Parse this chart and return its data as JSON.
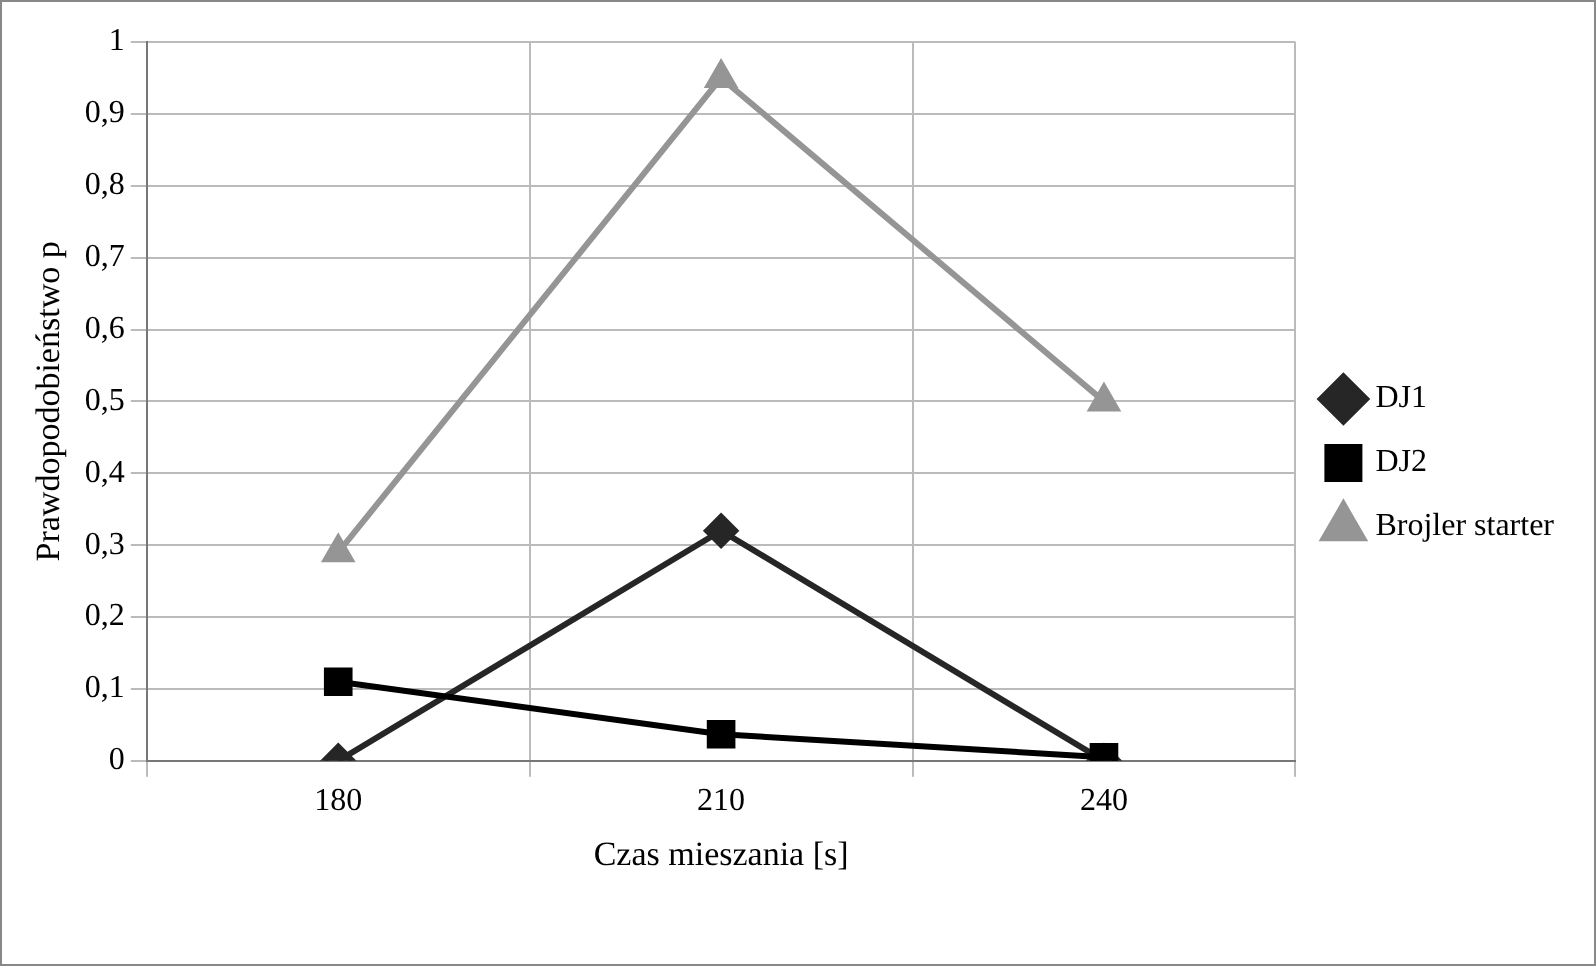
{
  "chart_data": {
    "type": "line",
    "xlabel": "Czas mieszania [s]",
    "ylabel": "Prawdopodobieństwo p",
    "categories": [
      "180",
      "210",
      "240"
    ],
    "series": [
      {
        "name": "DJ1",
        "color": "#262626",
        "marker": "diamond",
        "values": [
          0,
          0.32,
          0
        ]
      },
      {
        "name": "DJ2",
        "color": "#000000",
        "marker": "square",
        "values": [
          0.11,
          0.037,
          0.005
        ]
      },
      {
        "name": "Brojler starter",
        "color": "#959595",
        "marker": "triangle",
        "values": [
          0.29,
          0.95,
          0.5
        ]
      }
    ],
    "ylim": [
      0,
      1
    ],
    "yticks": [
      {
        "value": 0,
        "label": "0"
      },
      {
        "value": 0.1,
        "label": "0,1"
      },
      {
        "value": 0.2,
        "label": "0,2"
      },
      {
        "value": 0.3,
        "label": "0,3"
      },
      {
        "value": 0.4,
        "label": "0,4"
      },
      {
        "value": 0.5,
        "label": "0,5"
      },
      {
        "value": 0.6,
        "label": "0,6"
      },
      {
        "value": 0.7,
        "label": "0,7"
      },
      {
        "value": 0.8,
        "label": "0,8"
      },
      {
        "value": 0.9,
        "label": "0,9"
      },
      {
        "value": 1,
        "label": "1"
      }
    ],
    "grid": true,
    "legend": "right",
    "line_style": "solid"
  }
}
